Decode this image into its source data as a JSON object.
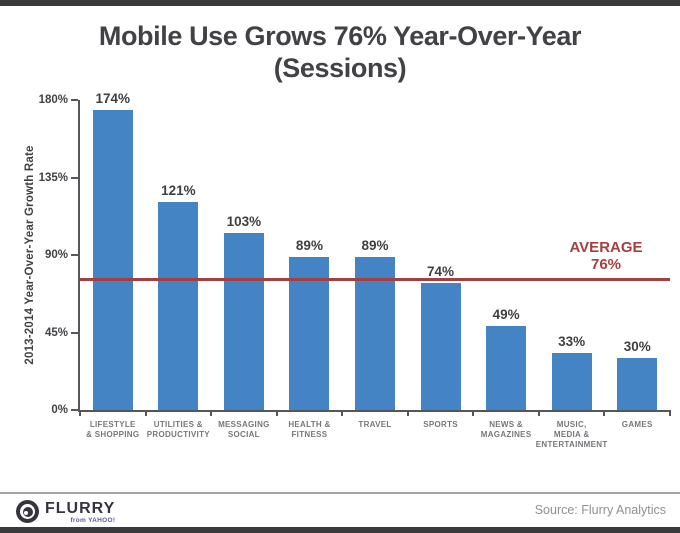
{
  "title": {
    "line1": "Mobile Use Grows 76% Year-Over-Year",
    "line2": "(Sessions)"
  },
  "chart_data": {
    "type": "bar",
    "title": "Mobile Use Grows 76% Year-Over-Year (Sessions)",
    "xlabel": "",
    "ylabel": "2013-2014 Year-Over-Year Growth Rate",
    "ylim": [
      0,
      180
    ],
    "yticks": [
      0,
      45,
      90,
      135,
      180
    ],
    "ytick_labels": [
      "0%",
      "45%",
      "90%",
      "135%",
      "180%"
    ],
    "grid": false,
    "legend": false,
    "categories": [
      "LIFESTYLE\n& SHOPPING",
      "UTILITIES &\nPRODUCTIVITY",
      "MESSAGING\nSOCIAL",
      "HEALTH &\nFITNESS",
      "TRAVEL",
      "SPORTS",
      "NEWS &\nMAGAZINES",
      "MUSIC,\nMEDIA &\nENTERTAINMENT",
      "GAMES"
    ],
    "values": [
      174,
      121,
      103,
      89,
      89,
      74,
      49,
      33,
      30
    ],
    "value_labels": [
      "174%",
      "121%",
      "103%",
      "89%",
      "89%",
      "74%",
      "49%",
      "33%",
      "30%"
    ],
    "bar_color": "#4484c4",
    "average_line": {
      "value": 76,
      "label_line1": "AVERAGE",
      "label_line2": "76%",
      "color": "#a4403f"
    }
  },
  "footer": {
    "logo_text": "FLURRY",
    "logo_subtext": "from YAHOO!",
    "source": "Source: Flurry Analytics"
  }
}
